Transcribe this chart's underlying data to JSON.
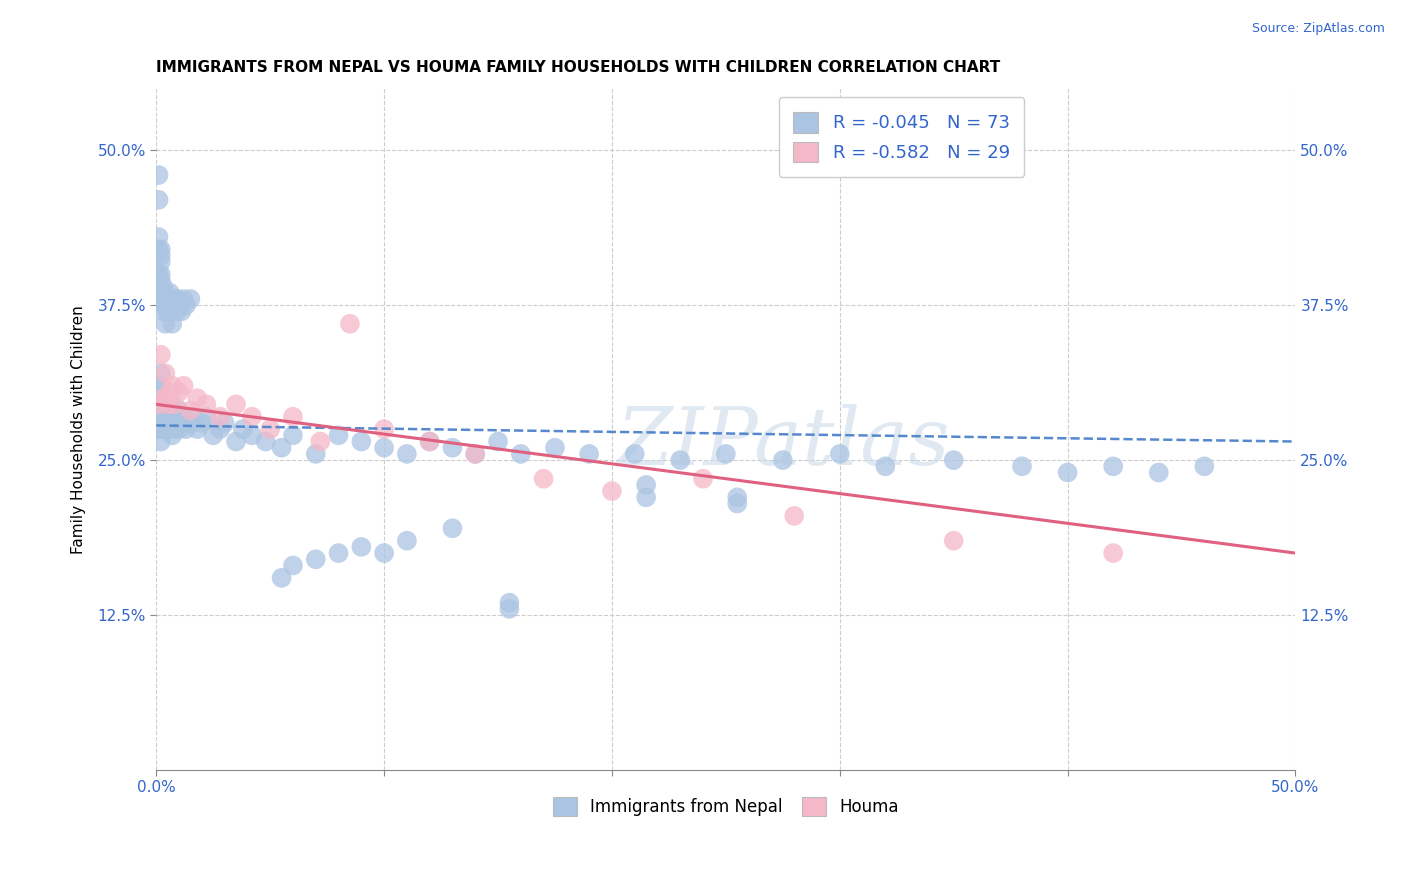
{
  "title": "IMMIGRANTS FROM NEPAL VS HOUMA FAMILY HOUSEHOLDS WITH CHILDREN CORRELATION CHART",
  "source_text": "Source: ZipAtlas.com",
  "ylabel": "Family Households with Children",
  "nepal_R": -0.045,
  "nepal_N": 73,
  "houma_R": -0.582,
  "houma_N": 29,
  "legend_labels": [
    "Immigrants from Nepal",
    "Houma"
  ],
  "nepal_color": "#aac4e2",
  "nepal_line_color": "#5588cc",
  "houma_color": "#f5b8c8",
  "houma_line_color": "#e06080",
  "legend_box_blue": "#aac4e2",
  "legend_box_pink": "#f5b8c8",
  "legend_text_color": "#3366cc",
  "watermark_text": "ZIPatlas",
  "nepal_x": [
    0.001,
    0.001,
    0.001,
    0.001,
    0.001,
    0.002,
    0.002,
    0.002,
    0.002,
    0.002,
    0.002,
    0.002,
    0.003,
    0.003,
    0.003,
    0.003,
    0.004,
    0.004,
    0.004,
    0.004,
    0.005,
    0.005,
    0.005,
    0.006,
    0.006,
    0.007,
    0.007,
    0.008,
    0.008,
    0.009,
    0.01,
    0.01,
    0.011,
    0.012,
    0.013,
    0.015,
    0.016,
    0.018,
    0.02,
    0.022,
    0.025,
    0.028,
    0.03,
    0.035,
    0.038,
    0.042,
    0.048,
    0.055,
    0.06,
    0.07,
    0.08,
    0.09,
    0.1,
    0.11,
    0.12,
    0.13,
    0.14,
    0.15,
    0.16,
    0.175,
    0.19,
    0.21,
    0.23,
    0.25,
    0.275,
    0.3,
    0.32,
    0.35,
    0.38,
    0.4,
    0.42,
    0.44,
    0.46
  ],
  "nepal_y": [
    0.295,
    0.31,
    0.285,
    0.3,
    0.275,
    0.32,
    0.295,
    0.31,
    0.285,
    0.3,
    0.275,
    0.265,
    0.3,
    0.285,
    0.295,
    0.275,
    0.295,
    0.285,
    0.275,
    0.3,
    0.285,
    0.295,
    0.275,
    0.285,
    0.295,
    0.28,
    0.27,
    0.285,
    0.275,
    0.28,
    0.29,
    0.275,
    0.285,
    0.28,
    0.275,
    0.28,
    0.285,
    0.275,
    0.28,
    0.285,
    0.27,
    0.275,
    0.28,
    0.265,
    0.275,
    0.27,
    0.265,
    0.26,
    0.27,
    0.255,
    0.27,
    0.265,
    0.26,
    0.255,
    0.265,
    0.26,
    0.255,
    0.265,
    0.255,
    0.26,
    0.255,
    0.255,
    0.25,
    0.255,
    0.25,
    0.255,
    0.245,
    0.25,
    0.245,
    0.24,
    0.245,
    0.24,
    0.245
  ],
  "nepal_y_extra": [
    0.48,
    0.46,
    0.43,
    0.42,
    0.4,
    0.415,
    0.4,
    0.385,
    0.42,
    0.395,
    0.41,
    0.39,
    0.375,
    0.385,
    0.37,
    0.375,
    0.385,
    0.375,
    0.36,
    0.375,
    0.38,
    0.37,
    0.38,
    0.385,
    0.37,
    0.375,
    0.36,
    0.38,
    0.375,
    0.37,
    0.38,
    0.375,
    0.37,
    0.38,
    0.375,
    0.38,
    0.155,
    0.165,
    0.17,
    0.175,
    0.18,
    0.175,
    0.185,
    0.195,
    0.13,
    0.135,
    0.22,
    0.23,
    0.215,
    0.22
  ],
  "nepal_x_extra": [
    0.001,
    0.001,
    0.001,
    0.001,
    0.001,
    0.002,
    0.002,
    0.002,
    0.002,
    0.002,
    0.002,
    0.003,
    0.003,
    0.003,
    0.003,
    0.004,
    0.004,
    0.004,
    0.004,
    0.005,
    0.005,
    0.005,
    0.005,
    0.006,
    0.006,
    0.007,
    0.007,
    0.008,
    0.008,
    0.009,
    0.009,
    0.01,
    0.011,
    0.012,
    0.013,
    0.015,
    0.055,
    0.06,
    0.07,
    0.08,
    0.09,
    0.1,
    0.11,
    0.13,
    0.155,
    0.155,
    0.215,
    0.215,
    0.255,
    0.255
  ],
  "houma_x": [
    0.001,
    0.002,
    0.003,
    0.004,
    0.005,
    0.006,
    0.007,
    0.008,
    0.01,
    0.012,
    0.015,
    0.018,
    0.022,
    0.028,
    0.035,
    0.042,
    0.05,
    0.06,
    0.072,
    0.085,
    0.1,
    0.12,
    0.14,
    0.17,
    0.2,
    0.24,
    0.28,
    0.35,
    0.42
  ],
  "houma_y": [
    0.295,
    0.335,
    0.3,
    0.32,
    0.295,
    0.305,
    0.31,
    0.295,
    0.305,
    0.31,
    0.29,
    0.3,
    0.295,
    0.285,
    0.295,
    0.285,
    0.275,
    0.285,
    0.265,
    0.36,
    0.275,
    0.265,
    0.255,
    0.235,
    0.225,
    0.235,
    0.205,
    0.185,
    0.175
  ],
  "xlim": [
    0.0,
    0.5
  ],
  "ylim": [
    0.0,
    0.55
  ],
  "x_ticks": [
    0.0,
    0.1,
    0.2,
    0.3,
    0.4,
    0.5
  ],
  "y_ticks": [
    0.125,
    0.25,
    0.375,
    0.5
  ],
  "y_tick_labels": [
    "12.5%",
    "25.0%",
    "37.5%",
    "50.0%"
  ],
  "title_fontsize": 11,
  "axis_tick_color": "#3366cc",
  "grid_color": "#cccccc",
  "background_color": "#ffffff",
  "nepal_line_start_y": 0.278,
  "nepal_line_end_y": 0.265,
  "houma_line_start_y": 0.295,
  "houma_line_end_y": 0.175
}
